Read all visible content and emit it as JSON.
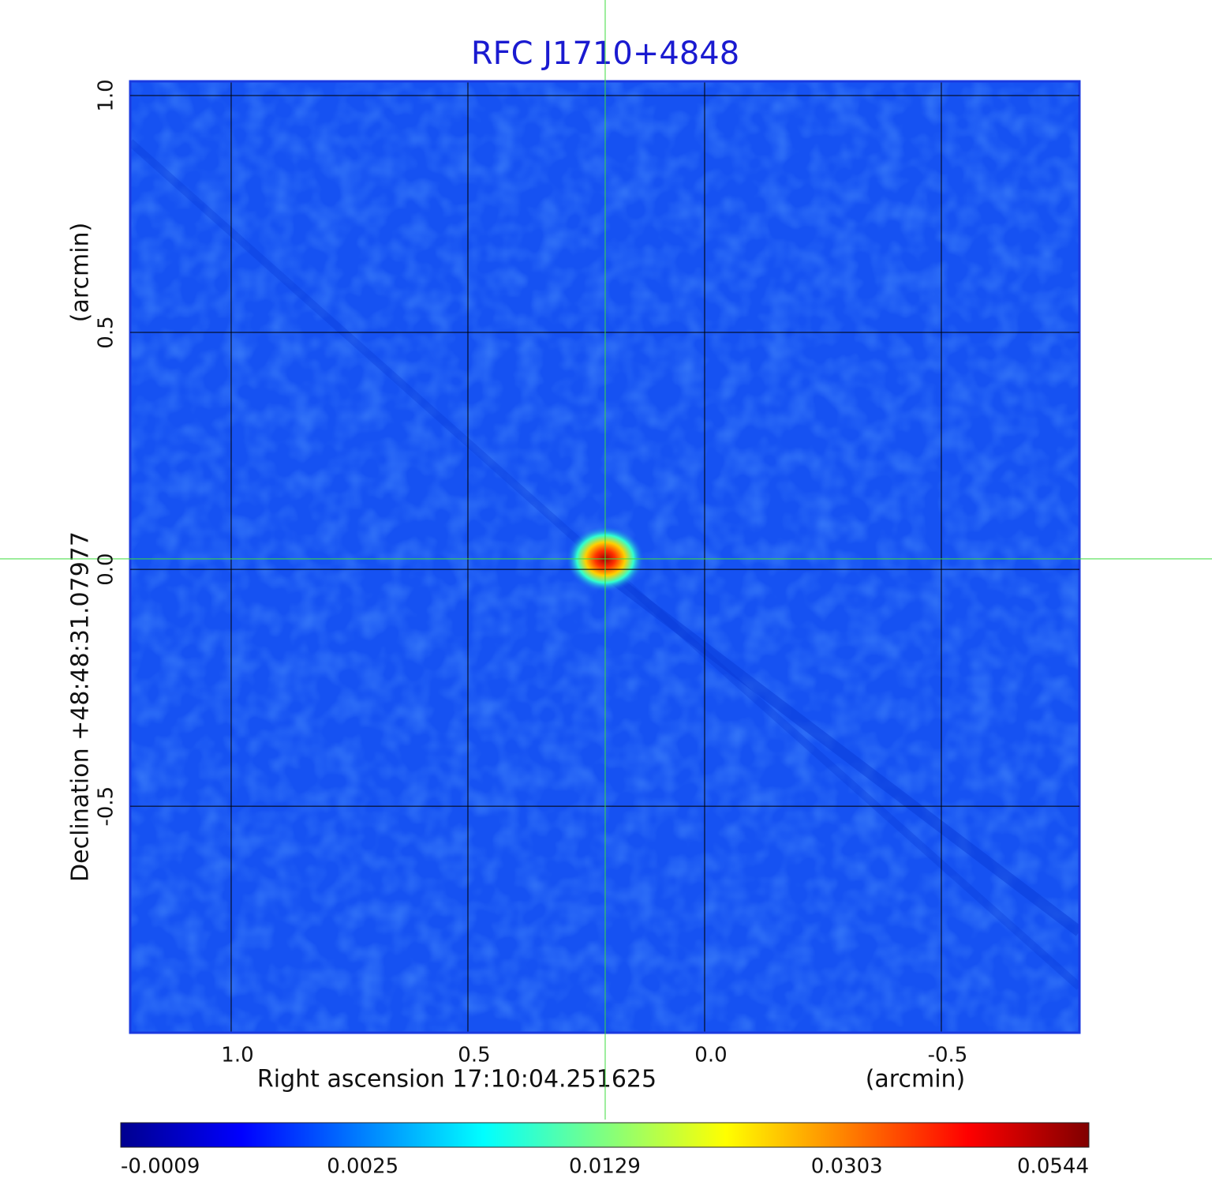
{
  "chart_data": {
    "type": "image",
    "title": "RFC J1710+4848",
    "xlabel": "Right ascension  17:10:04.251625",
    "xunit": "(arcmin)",
    "ylabel": "Declination  +48:48:31.07977",
    "yunit": "(arcmin)",
    "xlim": [
      1.2133,
      -0.7917
    ],
    "ylim": [
      -0.978,
      1.03
    ],
    "xticks": [
      {
        "value": 1,
        "label": "1.0"
      },
      {
        "value": 0.5,
        "label": "0.5"
      },
      {
        "value": 0,
        "label": "0.0"
      },
      {
        "value": -0.5,
        "label": "-0.5"
      }
    ],
    "yticks": [
      {
        "value": 1,
        "label": "1.0"
      },
      {
        "value": 0.5,
        "label": "0.5"
      },
      {
        "value": 0,
        "label": "0.0"
      },
      {
        "value": -0.5,
        "label": "-0.5"
      }
    ],
    "grid": true,
    "background_color": "#1652f2",
    "source": {
      "x": 0.21,
      "y": 0.022
    },
    "colorbar": {
      "ticks": [
        -0.0009,
        0.0025,
        0.0129,
        0.0303,
        0.0544
      ],
      "colors": [
        "#00008f",
        "#0000ff",
        "#0080ff",
        "#00ffff",
        "#80ff80",
        "#ffff00",
        "#ff8000",
        "#ff0000",
        "#800000"
      ]
    }
  }
}
